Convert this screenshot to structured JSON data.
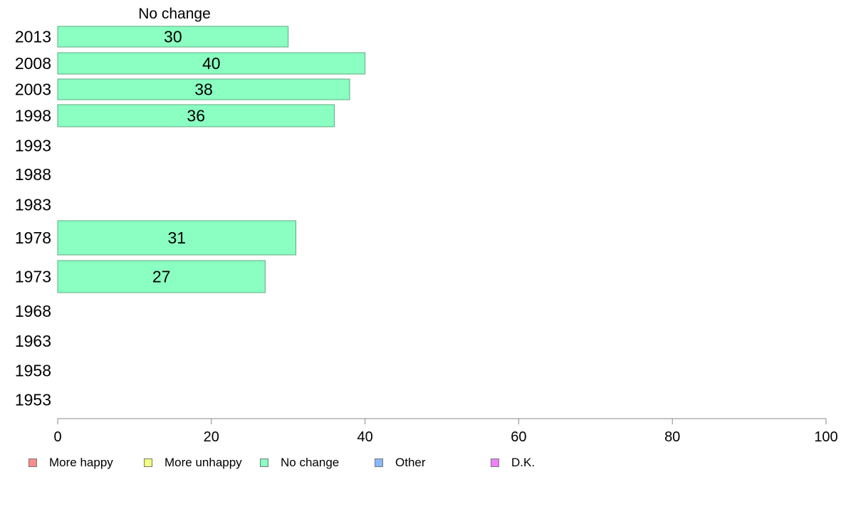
{
  "chart_data": {
    "type": "bar",
    "orientation": "horizontal",
    "title": "No change",
    "categories": [
      "2013",
      "2008",
      "2003",
      "1998",
      "1993",
      "1988",
      "1983",
      "1978",
      "1973",
      "1968",
      "1963",
      "1958",
      "1953"
    ],
    "series": [
      {
        "name": "No change",
        "color": "#8affc1",
        "values": [
          30,
          40,
          38,
          36,
          null,
          null,
          null,
          31,
          27,
          null,
          null,
          null,
          null
        ],
        "labels": [
          "30",
          "40",
          "38",
          "36",
          "",
          "",
          "",
          "31",
          "27",
          "",
          "",
          "",
          ""
        ]
      }
    ],
    "xlim": [
      0,
      100
    ],
    "xticks": [
      0,
      20,
      40,
      60,
      80,
      100
    ],
    "grid": false,
    "legend": {
      "placement": "bottom",
      "entries": [
        {
          "label": "More happy",
          "color": "#ff8a8a"
        },
        {
          "label": "More unhappy",
          "color": "#f0ff80"
        },
        {
          "label": "No change",
          "color": "#8affc1"
        },
        {
          "label": "Other",
          "color": "#8ab8ff"
        },
        {
          "label": "D.K.",
          "color": "#ee80ff"
        }
      ]
    }
  }
}
